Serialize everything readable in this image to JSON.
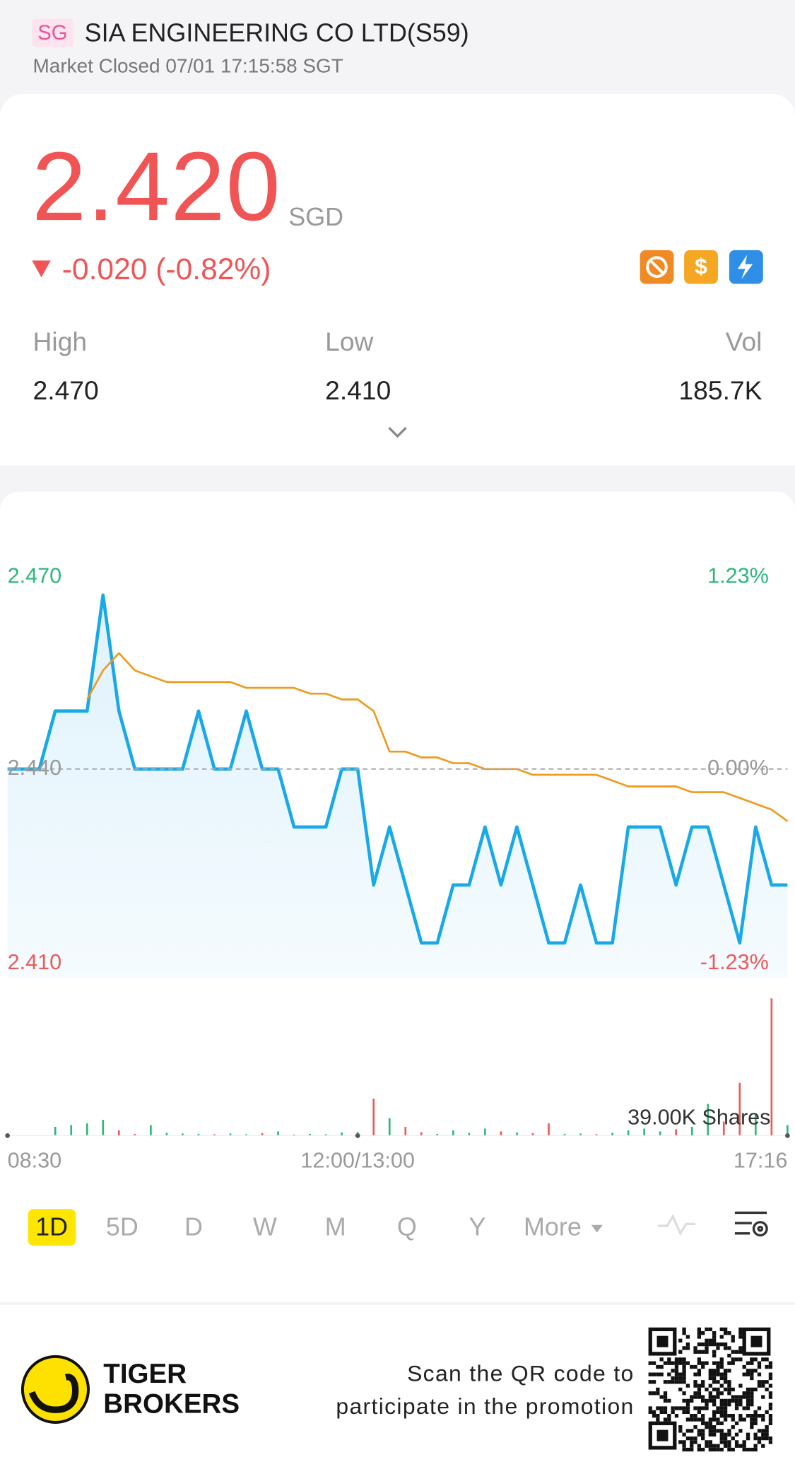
{
  "header": {
    "market": "SG",
    "title": "SIA ENGINEERING CO LTD(S59)",
    "status": "Market Closed 07/01 17:15:58 SGT"
  },
  "quote": {
    "price": "2.420",
    "currency": "SGD",
    "change": "-0.020 (-0.82%)",
    "stats": [
      {
        "label": "High",
        "value": "2.470"
      },
      {
        "label": "Low",
        "value": "2.410"
      },
      {
        "label": "Vol",
        "value": "185.7K"
      }
    ]
  },
  "chart_data": {
    "type": "line",
    "categories": [
      "08:30",
      null,
      null,
      null,
      null,
      null,
      null,
      null,
      null,
      null,
      null,
      null,
      null,
      null,
      null,
      null,
      null,
      null,
      null,
      null,
      null,
      null,
      "12:00/13:00",
      null,
      null,
      null,
      null,
      null,
      null,
      null,
      null,
      null,
      null,
      null,
      null,
      null,
      null,
      null,
      null,
      null,
      null,
      null,
      null,
      null,
      null,
      null,
      null,
      null,
      null,
      "17:16"
    ],
    "series": [
      {
        "color": "#1aa9e8",
        "values": [
          2.44,
          2.44,
          2.44,
          2.45,
          2.45,
          2.45,
          2.47,
          2.45,
          2.44,
          2.44,
          2.44,
          2.44,
          2.45,
          2.44,
          2.44,
          2.45,
          2.44,
          2.44,
          2.43,
          2.43,
          2.43,
          2.44,
          2.44,
          2.42,
          2.43,
          2.42,
          2.41,
          2.41,
          2.42,
          2.42,
          2.43,
          2.42,
          2.43,
          2.42,
          2.41,
          2.41,
          2.42,
          2.41,
          2.41,
          2.43,
          2.43,
          2.43,
          2.42,
          2.43,
          2.43,
          2.42,
          2.41,
          2.43,
          2.42,
          2.42
        ]
      },
      {
        "color": "#ef9a1e",
        "values": [
          null,
          null,
          null,
          null,
          null,
          2.452,
          2.457,
          2.46,
          2.457,
          2.456,
          2.455,
          2.455,
          2.455,
          2.455,
          2.455,
          2.454,
          2.454,
          2.454,
          2.454,
          2.453,
          2.453,
          2.452,
          2.452,
          2.45,
          2.443,
          2.443,
          2.442,
          2.442,
          2.441,
          2.441,
          2.44,
          2.44,
          2.44,
          2.439,
          2.439,
          2.439,
          2.439,
          2.439,
          2.438,
          2.437,
          2.437,
          2.437,
          2.437,
          2.436,
          2.436,
          2.436,
          2.435,
          2.434,
          2.433,
          2.431
        ]
      }
    ],
    "ylim": [
      2.41,
      2.47
    ],
    "yticks": [
      {
        "value": 2.47,
        "label": "2.470"
      },
      {
        "value": 2.44,
        "label": "2.440"
      },
      {
        "value": 2.41,
        "label": "2.410"
      }
    ],
    "y2lim": [
      -1.23,
      1.23
    ],
    "y2ticks": [
      {
        "value": 1.23,
        "label": "1.23%"
      },
      {
        "value": 0,
        "label": "0.00%"
      },
      {
        "value": -1.23,
        "label": "-1.23%"
      }
    ],
    "up_color": "#2cb87a",
    "down_color": "#ec5b5b",
    "volume": {
      "values": [
        300,
        0,
        0,
        2500,
        3000,
        3500,
        4500,
        1500,
        500,
        3000,
        800,
        600,
        500,
        400,
        600,
        400,
        700,
        1200,
        300,
        500,
        400,
        900,
        1000,
        10500,
        5000,
        2500,
        1000,
        500,
        1500,
        800,
        2000,
        1200,
        900,
        700,
        3500,
        500,
        600,
        400,
        800,
        1500,
        2000,
        1200,
        1800,
        2500,
        9000,
        4000,
        15000,
        6000,
        39000,
        3000
      ],
      "ylim": [
        0,
        39000
      ],
      "ticks": [
        {
          "value": 39000,
          "label": "39.00K Shares"
        }
      ]
    }
  },
  "periods": [
    "1D",
    "5D",
    "D",
    "W",
    "M",
    "Q",
    "Y",
    "More"
  ],
  "selected_period": 0,
  "footer": {
    "brand": [
      "TIGER",
      "BROKERS"
    ],
    "promo": [
      "Scan the QR code to",
      "participate in the promotion"
    ]
  }
}
